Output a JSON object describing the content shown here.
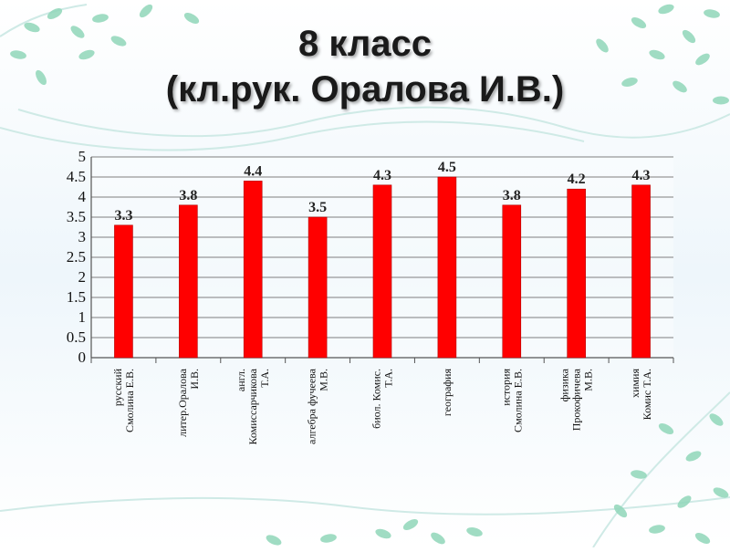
{
  "slide": {
    "title_line1": "8 класс",
    "title_line2": "(кл.рук. Оралова И.В.)"
  },
  "colors": {
    "bar": "#ff0000",
    "bar_edge": "#b30000",
    "grid": "#7f7f7f",
    "decor_leaf": "#8fd6b8",
    "decor_swirl": "#cfeae6",
    "background_tint": "#eef6fb"
  },
  "chart_data": {
    "type": "bar",
    "title": "",
    "xlabel": "",
    "ylabel": "",
    "ylim": [
      0,
      5
    ],
    "yticks": [
      "0",
      "0.5",
      "1",
      "1.5",
      "2",
      "2.5",
      "3",
      "3.5",
      "4",
      "4.5",
      "5"
    ],
    "grid": true,
    "legend": "none",
    "categories": [
      [
        "русский",
        "Смолина Е.В."
      ],
      [
        "литер.Оралова",
        "И.В."
      ],
      [
        "англ.",
        "Комиссарчикова",
        "Т.А."
      ],
      [
        "алгебра фучеева",
        "М.В."
      ],
      [
        "биол. Комис.",
        "Т.А."
      ],
      [
        "география"
      ],
      [
        "история",
        "Смолина Е.В."
      ],
      [
        "физика",
        "Прокофичева",
        "М.В."
      ],
      [
        "химия",
        "Комис Т.А."
      ]
    ],
    "values": [
      3.3,
      3.8,
      4.4,
      3.5,
      4.3,
      4.5,
      3.8,
      4.2,
      4.3
    ],
    "data_labels": [
      "3.3",
      "3.8",
      "4.4",
      "3.5",
      "4.3",
      "4.5",
      "3.8",
      "4.2",
      "4.3"
    ]
  }
}
